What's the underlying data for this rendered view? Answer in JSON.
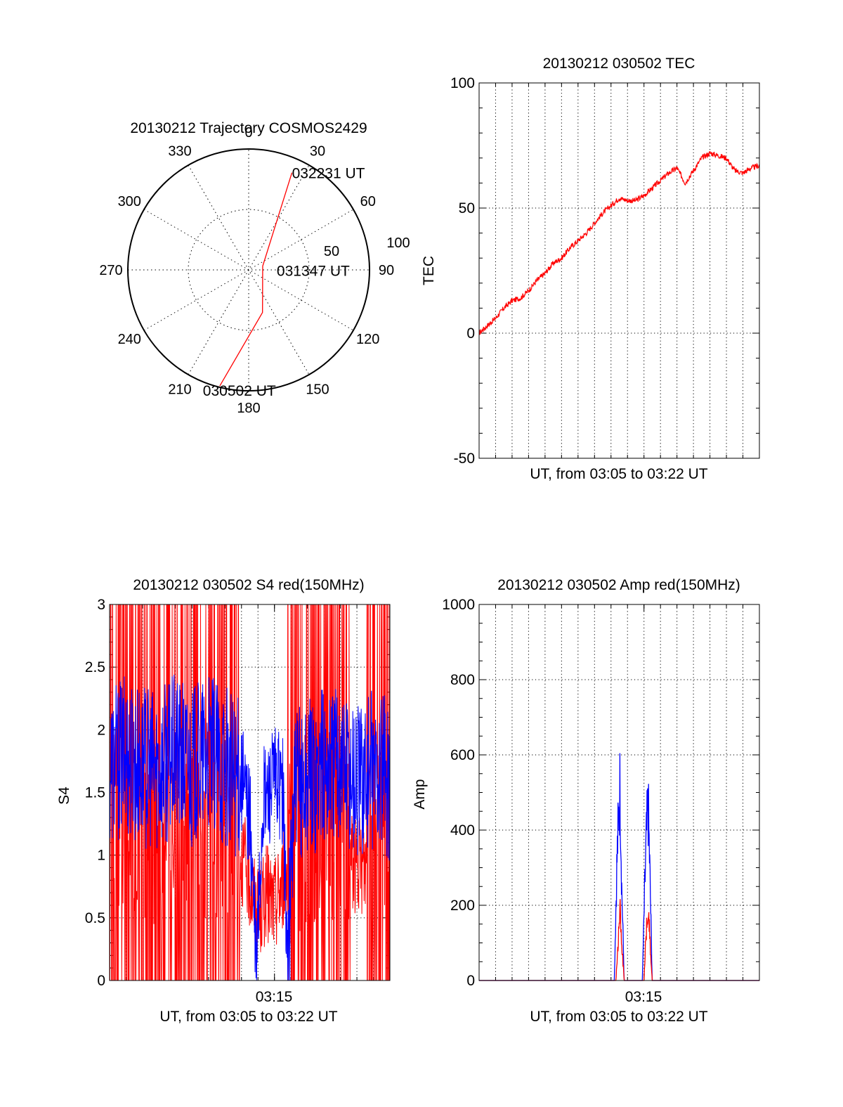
{
  "colors": {
    "red": "#ff0000",
    "blue": "#0000ff",
    "axis": "#000000",
    "grid": "#000000",
    "background": "#ffffff"
  },
  "chart_data": [
    {
      "type": "polar",
      "title": "20130212 Trajectory COSMOS2429",
      "angle_labels": [
        "0",
        "30",
        "60",
        "90",
        "120",
        "150",
        "180",
        "210",
        "240",
        "270",
        "300",
        "330"
      ],
      "radial_labels": [
        "50",
        "100"
      ],
      "rlim": [
        0,
        100
      ],
      "grid": true,
      "series": [
        {
          "color": "red",
          "points": [
            {
              "az": 194,
              "r": 99
            },
            {
              "az": 162,
              "r": 37
            },
            {
              "az": 75,
              "r": 12
            },
            {
              "az": 24,
              "r": 88
            }
          ]
        }
      ],
      "annotations": [
        {
          "text": "032231 UT",
          "az": 24,
          "r": 88
        },
        {
          "text": "031347 UT",
          "az": 75,
          "r": 12
        },
        {
          "text": "030502 UT",
          "az": 194,
          "r": 99
        }
      ]
    },
    {
      "type": "line",
      "title": "20130212 030502 TEC",
      "xlabel": "UT, from 03:05 to 03:22 UT",
      "ylabel": "TEC",
      "xlim_minutes": [
        0,
        17
      ],
      "ylim": [
        -50,
        100
      ],
      "yticks": [
        "-50",
        "0",
        "50",
        "100"
      ],
      "grid": true,
      "series": [
        {
          "color": "red",
          "x_minutes": [
            0,
            0.5,
            1,
            1.5,
            2,
            2.5,
            3,
            3.5,
            4,
            4.5,
            5,
            5.5,
            6,
            6.5,
            7,
            7.5,
            8,
            8.5,
            9,
            9.5,
            10,
            10.5,
            11,
            11.5,
            12,
            12.5,
            13,
            13.5,
            14,
            14.5,
            15,
            15.5,
            16,
            16.5,
            17
          ],
          "values": [
            0,
            3,
            6,
            10,
            13,
            14,
            17,
            21,
            24,
            28,
            30,
            34,
            37,
            40,
            44,
            48,
            51,
            54,
            53,
            53,
            55,
            58,
            61,
            64,
            66,
            60,
            65,
            70,
            72,
            71,
            70,
            65,
            64,
            66,
            67
          ]
        }
      ]
    },
    {
      "type": "line",
      "title": "20130212 030502 S4 red(150MHz)",
      "xlabel": "UT, from 03:05 to 03:22 UT",
      "ylabel": "S4",
      "xticks": [
        "03:15"
      ],
      "xlim_minutes": [
        0,
        17
      ],
      "ylim": [
        0,
        3
      ],
      "yticks": [
        "0",
        "0.5",
        "1",
        "1.5",
        "2",
        "2.5",
        "3"
      ],
      "grid": true,
      "series": [
        {
          "color": "red",
          "x_minutes": [
            0,
            1,
            2,
            3,
            4,
            5,
            6,
            7,
            8,
            8.5,
            9,
            9.5,
            10,
            10.5,
            11,
            12,
            13,
            14,
            15,
            15.5,
            16,
            17
          ],
          "values": [
            1.3,
            1.2,
            1.3,
            1.2,
            1.3,
            1.2,
            1.3,
            1.2,
            1.0,
            0.8,
            0.5,
            0.7,
            0.6,
            0.8,
            1.0,
            1.2,
            1.3,
            1.2,
            0.9,
            0.9,
            1.2,
            1.3
          ]
        },
        {
          "color": "blue",
          "x_minutes": [
            0,
            1,
            2,
            3,
            4,
            5,
            6,
            7,
            8,
            8.5,
            8.9,
            9.3,
            10,
            10.5,
            10.8,
            11.2,
            12,
            13,
            14,
            15,
            16,
            17
          ],
          "values": [
            1.7,
            1.8,
            1.7,
            1.7,
            1.8,
            1.7,
            1.8,
            1.7,
            1.6,
            1.3,
            0.1,
            1.4,
            1.6,
            1.5,
            0.1,
            1.5,
            1.6,
            1.7,
            1.8,
            1.6,
            1.7,
            1.6
          ]
        }
      ]
    },
    {
      "type": "line",
      "title": "20130212 030502 Amp red(150MHz)",
      "xlabel": "UT, from 03:05 to 03:22 UT",
      "ylabel": "Amp",
      "xticks": [
        "03:15"
      ],
      "xlim_minutes": [
        0,
        17
      ],
      "ylim": [
        0,
        1000
      ],
      "yticks": [
        "0",
        "200",
        "400",
        "600",
        "800",
        "1000"
      ],
      "grid": true,
      "series": [
        {
          "color": "blue",
          "x_minutes": [
            0,
            8.2,
            8.35,
            8.45,
            8.55,
            8.65,
            8.8,
            9.9,
            10.05,
            10.15,
            10.25,
            10.35,
            10.5,
            17
          ],
          "values": [
            0,
            0,
            300,
            420,
            520,
            250,
            0,
            0,
            250,
            380,
            465,
            300,
            0,
            0
          ]
        },
        {
          "color": "red",
          "x_minutes": [
            0,
            8.3,
            8.45,
            8.55,
            8.65,
            8.8,
            10.0,
            10.15,
            10.25,
            10.35,
            10.5,
            17
          ],
          "values": [
            0,
            0,
            120,
            200,
            100,
            0,
            0,
            150,
            190,
            120,
            0,
            0
          ]
        }
      ]
    }
  ]
}
